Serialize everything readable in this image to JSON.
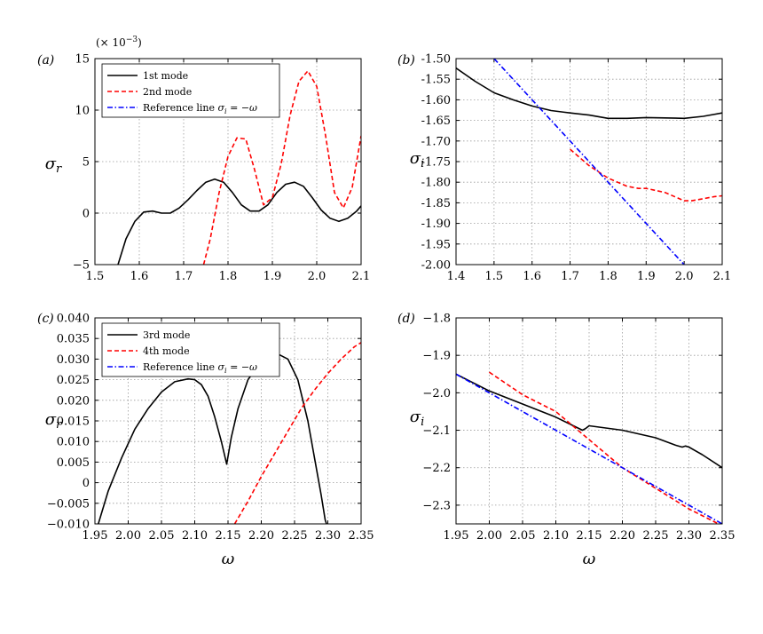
{
  "chart_data": [
    {
      "panel": "(a)",
      "type": "line",
      "xlim": [
        1.5,
        2.1
      ],
      "ylim": [
        -5,
        15
      ],
      "xticks": [
        "1.5",
        "1.6",
        "1.7",
        "1.8",
        "1.9",
        "2.0",
        "2.1"
      ],
      "yticks": [
        "−5",
        "0",
        "5",
        "10",
        "15"
      ],
      "ylabel": "σ_r",
      "xlabel": "",
      "multiplier": "(× 10−3)",
      "grid": true,
      "legend": "top-left",
      "series": [
        {
          "name": "1st mode",
          "color": "#000000",
          "dash": "solid",
          "x": [
            1.552,
            1.57,
            1.59,
            1.61,
            1.63,
            1.65,
            1.67,
            1.69,
            1.71,
            1.73,
            1.75,
            1.77,
            1.79,
            1.81,
            1.83,
            1.85,
            1.87,
            1.89,
            1.91,
            1.93,
            1.95,
            1.97,
            1.99,
            2.01,
            2.03,
            2.05,
            2.07,
            2.09,
            2.1
          ],
          "y": [
            -5,
            -2.5,
            -0.8,
            0.1,
            0.2,
            0.0,
            0.0,
            0.5,
            1.3,
            2.2,
            3.0,
            3.3,
            3.0,
            2.0,
            0.8,
            0.2,
            0.2,
            0.8,
            2.0,
            2.8,
            3.0,
            2.6,
            1.5,
            0.3,
            -0.5,
            -0.8,
            -0.5,
            0.2,
            0.7
          ]
        },
        {
          "name": "2nd mode",
          "color": "#ff0000",
          "dash": "dashed",
          "x": [
            1.745,
            1.76,
            1.78,
            1.8,
            1.82,
            1.84,
            1.86,
            1.88,
            1.9,
            1.92,
            1.94,
            1.96,
            1.98,
            2.0,
            2.02,
            2.04,
            2.06,
            2.08,
            2.1
          ],
          "y": [
            -5,
            -2.5,
            2.0,
            5.5,
            7.3,
            7.2,
            4.2,
            0.8,
            1.5,
            4.8,
            9.5,
            12.8,
            13.8,
            12.3,
            7.5,
            2.0,
            0.5,
            2.5,
            7.5
          ]
        },
        {
          "name": "Reference line  σ_i = −ω",
          "color": "#0000ff",
          "dash": "dashdot",
          "x": [],
          "y": []
        }
      ]
    },
    {
      "panel": "(b)",
      "type": "line",
      "xlim": [
        1.4,
        2.1
      ],
      "ylim": [
        -2.0,
        -1.5
      ],
      "xticks": [
        "1.4",
        "1.5",
        "1.6",
        "1.7",
        "1.8",
        "1.9",
        "2.0",
        "2.1"
      ],
      "yticks": [
        "-1.50",
        "-1.55",
        "-1.60",
        "-1.65",
        "-1.70",
        "-1.75",
        "-1.80",
        "-1.85",
        "-1.90",
        "-1.95",
        "-2.00"
      ],
      "ylabel": "σ_i",
      "xlabel": "",
      "grid": true,
      "series": [
        {
          "name": "1st mode",
          "color": "#000000",
          "dash": "solid",
          "x": [
            1.4,
            1.45,
            1.5,
            1.55,
            1.6,
            1.65,
            1.7,
            1.75,
            1.8,
            1.85,
            1.9,
            1.95,
            2.0,
            2.05,
            2.1
          ],
          "y": [
            -1.523,
            -1.555,
            -1.583,
            -1.6,
            -1.615,
            -1.626,
            -1.632,
            -1.637,
            -1.645,
            -1.645,
            -1.643,
            -1.644,
            -1.645,
            -1.64,
            -1.632
          ]
        },
        {
          "name": "2nd mode",
          "color": "#ff0000",
          "dash": "dashed",
          "x": [
            1.7,
            1.75,
            1.8,
            1.85,
            1.88,
            1.9,
            1.95,
            2.0,
            2.02,
            2.05,
            2.08,
            2.1
          ],
          "y": [
            -1.72,
            -1.76,
            -1.79,
            -1.81,
            -1.815,
            -1.815,
            -1.825,
            -1.845,
            -1.845,
            -1.84,
            -1.835,
            -1.833
          ]
        },
        {
          "name": "Reference line  σ_i = −ω",
          "color": "#0000ff",
          "dash": "dashdot",
          "x": [
            1.5,
            2.0
          ],
          "y": [
            -1.5,
            -2.0
          ]
        }
      ]
    },
    {
      "panel": "(c)",
      "type": "line",
      "xlim": [
        1.95,
        2.35
      ],
      "ylim": [
        -0.01,
        0.04
      ],
      "xticks": [
        "1.95",
        "2.00",
        "2.05",
        "2.10",
        "2.15",
        "2.20",
        "2.25",
        "2.30",
        "2.35"
      ],
      "yticks": [
        "0.040",
        "0.035",
        "0.030",
        "0.025",
        "0.020",
        "0.015",
        "0.010",
        "0.005",
        "0",
        "−0.005",
        "−0.010"
      ],
      "ylabel": "σ_r",
      "xlabel": "ω",
      "grid": true,
      "legend": "top-left",
      "series": [
        {
          "name": "3rd mode",
          "color": "#000000",
          "dash": "solid",
          "x": [
            1.955,
            1.97,
            1.99,
            2.01,
            2.03,
            2.05,
            2.07,
            2.09,
            2.1,
            2.11,
            2.12,
            2.13,
            2.14,
            2.148,
            2.155,
            2.165,
            2.18,
            2.2,
            2.215,
            2.228,
            2.24,
            2.255,
            2.27,
            2.28,
            2.29,
            2.296,
            2.298
          ],
          "y": [
            -0.01,
            -0.002,
            0.006,
            0.013,
            0.018,
            0.022,
            0.0245,
            0.0252,
            0.025,
            0.0238,
            0.021,
            0.016,
            0.01,
            0.0045,
            0.011,
            0.018,
            0.025,
            0.0295,
            0.0308,
            0.031,
            0.03,
            0.025,
            0.015,
            0.006,
            -0.003,
            -0.009,
            -0.01
          ]
        },
        {
          "name": "4th mode",
          "color": "#ff0000",
          "dash": "dashed",
          "x": [
            2.16,
            2.18,
            2.2,
            2.22,
            2.24,
            2.26,
            2.28,
            2.3,
            2.32,
            2.34,
            2.35
          ],
          "y": [
            -0.01,
            -0.0045,
            0.0015,
            0.007,
            0.0125,
            0.018,
            0.0225,
            0.0265,
            0.03,
            0.033,
            0.034
          ]
        },
        {
          "name": "Reference line  σ_i = −ω",
          "color": "#0000ff",
          "dash": "dashdot",
          "x": [],
          "y": []
        }
      ]
    },
    {
      "panel": "(d)",
      "type": "line",
      "xlim": [
        1.95,
        2.35
      ],
      "ylim": [
        -2.35,
        -1.8
      ],
      "xticks": [
        "1.95",
        "2.00",
        "2.05",
        "2.10",
        "2.15",
        "2.20",
        "2.25",
        "2.30",
        "2.35"
      ],
      "yticks": [
        "−1.8",
        "−1.9",
        "−2.0",
        "−2.1",
        "−2.2",
        "−2.3"
      ],
      "ytick_values": [
        -1.8,
        -1.9,
        -2.0,
        -2.1,
        -2.2,
        -2.3
      ],
      "ylabel": "σ_i",
      "xlabel": "ω",
      "grid": true,
      "series": [
        {
          "name": "3rd mode",
          "color": "#000000",
          "dash": "solid",
          "x": [
            1.95,
            2.0,
            2.05,
            2.1,
            2.14,
            2.145,
            2.15,
            2.2,
            2.25,
            2.28,
            2.29,
            2.295,
            2.3,
            2.32,
            2.35
          ],
          "y": [
            -1.95,
            -1.995,
            -2.03,
            -2.065,
            -2.1,
            -2.095,
            -2.088,
            -2.1,
            -2.12,
            -2.14,
            -2.145,
            -2.142,
            -2.145,
            -2.165,
            -2.2
          ]
        },
        {
          "name": "4th mode",
          "color": "#ff0000",
          "dash": "dashed",
          "x": [
            2.0,
            2.05,
            2.1,
            2.15,
            2.2,
            2.25,
            2.3,
            2.35
          ],
          "y": [
            -1.945,
            -2.005,
            -2.05,
            -2.125,
            -2.2,
            -2.255,
            -2.31,
            -2.355
          ]
        },
        {
          "name": "Reference line  σ_i = −ω",
          "color": "#0000ff",
          "dash": "dashdot",
          "x": [
            1.95,
            2.35
          ],
          "y": [
            -1.95,
            -2.35
          ]
        }
      ]
    }
  ]
}
